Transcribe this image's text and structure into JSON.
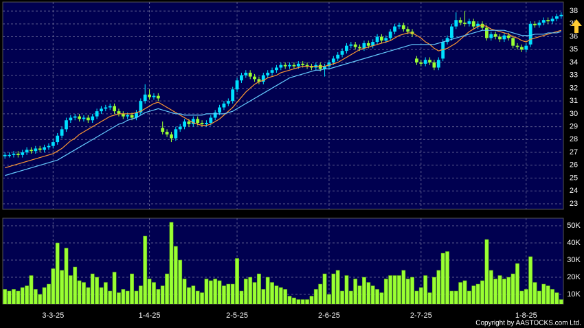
{
  "chart_data": [
    {
      "type": "candlestick",
      "up_color": "#00e0ff",
      "down_color": "#99ff33",
      "xlim": [
        -0.5,
        127.5
      ],
      "ylim": [
        22.57,
        38.7
      ],
      "yticks": [
        23,
        24,
        25,
        26,
        27,
        28,
        29,
        30,
        31,
        32,
        33,
        34,
        35,
        36,
        37,
        38
      ],
      "grid": true,
      "open": [
        26.7,
        26.8,
        26.8,
        26.9,
        26.8,
        27.0,
        27.2,
        27.1,
        27.3,
        27.2,
        27.4,
        27.5,
        27.8,
        28.3,
        28.8,
        29.5,
        29.7,
        29.8,
        29.6,
        29.7,
        29.5,
        29.8,
        30.2,
        30.4,
        30.5,
        30.6,
        30.2,
        30.0,
        29.8,
        29.9,
        29.7,
        30.1,
        31.0,
        31.5,
        31.3,
        31.4,
        28.9,
        28.6,
        28.4,
        28.1,
        28.8,
        29.0,
        29.4,
        29.2,
        29.6,
        29.3,
        29.2,
        29.3,
        29.7,
        30.1,
        30.5,
        30.8,
        31.0,
        31.9,
        32.6,
        33.0,
        33.2,
        32.9,
        32.7,
        32.5,
        33.0,
        33.2,
        33.4,
        33.6,
        33.8,
        33.7,
        33.8,
        33.7,
        33.9,
        33.8,
        33.7,
        33.6,
        33.8,
        33.5,
        33.7,
        34.0,
        34.3,
        34.6,
        34.9,
        35.3,
        35.4,
        35.2,
        35.1,
        35.5,
        35.3,
        35.6,
        36.0,
        35.7,
        35.9,
        36.4,
        36.8,
        36.9,
        36.6,
        36.4,
        34.3,
        34.0,
        33.9,
        34.2,
        34.0,
        33.6,
        34.3,
        35.6,
        35.9,
        36.8,
        37.3,
        37.1,
        37.0,
        37.2,
        36.8,
        37.0,
        36.7,
        35.9,
        36.2,
        36.0,
        35.8,
        36.1,
        35.9,
        35.3,
        35.2,
        35.0,
        35.4,
        37.0,
        36.9,
        37.1,
        37.3,
        37.2,
        37.4,
        37.6
      ],
      "high": [
        27.0,
        27.0,
        27.1,
        27.1,
        27.2,
        27.4,
        27.4,
        27.5,
        27.5,
        27.6,
        27.7,
        28.0,
        28.5,
        29.0,
        29.7,
        29.9,
        30.0,
        30.0,
        29.9,
        29.9,
        30.0,
        30.4,
        30.6,
        30.7,
        30.8,
        30.8,
        30.4,
        30.2,
        30.1,
        30.1,
        30.3,
        31.2,
        32.3,
        31.9,
        31.6,
        31.6,
        29.4,
        28.8,
        28.6,
        29.0,
        29.2,
        29.6,
        29.6,
        29.8,
        29.8,
        29.5,
        29.5,
        29.9,
        30.3,
        30.7,
        31.0,
        31.2,
        32.1,
        32.8,
        33.2,
        33.4,
        33.4,
        33.1,
        32.9,
        33.2,
        33.4,
        33.6,
        33.8,
        34.0,
        34.0,
        34.0,
        34.0,
        34.1,
        34.1,
        34.0,
        33.9,
        34.0,
        34.0,
        33.9,
        34.2,
        34.5,
        34.8,
        35.1,
        35.5,
        35.6,
        35.6,
        35.4,
        35.7,
        35.7,
        35.8,
        36.2,
        36.2,
        36.1,
        36.6,
        37.0,
        37.1,
        37.1,
        36.8,
        36.6,
        34.5,
        34.2,
        34.4,
        34.4,
        34.2,
        34.4,
        35.8,
        36.1,
        37.0,
        37.9,
        37.5,
        38.0,
        37.4,
        37.4,
        37.2,
        37.2,
        36.9,
        36.4,
        36.4,
        36.2,
        36.3,
        36.3,
        36.1,
        35.5,
        35.4,
        35.5,
        37.2,
        37.2,
        37.3,
        37.5,
        37.5,
        37.6,
        37.8,
        37.9
      ],
      "low": [
        26.5,
        26.6,
        26.6,
        26.6,
        26.6,
        26.8,
        26.9,
        26.9,
        27.0,
        27.0,
        27.2,
        27.3,
        27.6,
        28.1,
        28.6,
        29.3,
        29.5,
        29.4,
        29.4,
        29.3,
        29.3,
        29.6,
        30.0,
        30.2,
        30.3,
        30.0,
        29.8,
        29.6,
        29.6,
        29.5,
        29.5,
        29.9,
        30.8,
        31.1,
        31.1,
        31.0,
        28.4,
        28.2,
        27.8,
        27.9,
        28.6,
        28.8,
        29.0,
        29.0,
        29.1,
        29.0,
        29.0,
        29.1,
        29.5,
        29.9,
        30.3,
        30.6,
        30.8,
        31.7,
        32.4,
        32.8,
        32.7,
        32.5,
        32.3,
        32.3,
        32.8,
        33.0,
        33.2,
        33.4,
        33.5,
        33.5,
        33.5,
        33.5,
        33.6,
        33.5,
        33.4,
        33.4,
        33.3,
        32.9,
        33.5,
        33.8,
        34.1,
        34.4,
        34.7,
        35.1,
        35.0,
        34.9,
        34.9,
        35.1,
        35.1,
        35.4,
        35.5,
        35.5,
        35.7,
        36.2,
        36.6,
        36.4,
        36.2,
        36.0,
        33.8,
        33.7,
        33.7,
        33.8,
        33.4,
        33.4,
        34.1,
        35.4,
        35.7,
        36.6,
        36.9,
        36.8,
        36.8,
        36.6,
        36.6,
        36.5,
        35.7,
        35.7,
        35.8,
        35.6,
        35.6,
        35.7,
        35.1,
        35.0,
        34.8,
        34.8,
        35.2,
        36.7,
        36.7,
        36.9,
        37.0,
        37.0,
        37.2,
        37.4
      ],
      "close": [
        26.8,
        26.8,
        26.9,
        26.8,
        27.0,
        27.2,
        27.1,
        27.3,
        27.2,
        27.4,
        27.5,
        27.8,
        28.3,
        28.8,
        29.5,
        29.7,
        29.8,
        29.6,
        29.7,
        29.5,
        29.8,
        30.2,
        30.4,
        30.5,
        30.6,
        30.2,
        30.0,
        29.8,
        29.9,
        29.7,
        30.1,
        31.0,
        31.5,
        31.3,
        31.4,
        31.2,
        28.6,
        28.4,
        28.1,
        28.8,
        29.0,
        29.4,
        29.2,
        29.6,
        29.3,
        29.2,
        29.3,
        29.7,
        30.1,
        30.5,
        30.8,
        31.0,
        31.9,
        32.6,
        33.0,
        33.2,
        32.9,
        32.7,
        32.5,
        33.0,
        33.2,
        33.4,
        33.6,
        33.8,
        33.7,
        33.8,
        33.7,
        33.9,
        33.8,
        33.7,
        33.6,
        33.8,
        33.5,
        33.7,
        34.0,
        34.3,
        34.6,
        34.9,
        35.3,
        35.4,
        35.2,
        35.1,
        35.5,
        35.3,
        35.6,
        36.0,
        35.7,
        35.9,
        36.4,
        36.8,
        36.9,
        36.6,
        36.4,
        36.2,
        34.0,
        33.9,
        34.2,
        34.0,
        33.6,
        34.2,
        35.6,
        35.9,
        36.8,
        37.3,
        37.1,
        37.0,
        37.2,
        36.8,
        37.0,
        36.7,
        35.9,
        36.2,
        36.0,
        35.8,
        36.1,
        35.9,
        35.3,
        35.2,
        35.0,
        35.3,
        37.0,
        36.9,
        37.1,
        37.3,
        37.2,
        37.4,
        37.6,
        37.7
      ],
      "lines": [
        {
          "color": "#ff9933",
          "values": [
            25.8,
            25.9,
            26.0,
            26.1,
            26.2,
            26.3,
            26.4,
            26.5,
            26.6,
            26.7,
            26.8,
            26.9,
            27.1,
            27.3,
            27.6,
            27.9,
            28.1,
            28.4,
            28.6,
            28.8,
            29.0,
            29.2,
            29.4,
            29.6,
            29.8,
            29.9,
            30.0,
            30.0,
            30.0,
            30.0,
            30.1,
            30.2,
            30.4,
            30.6,
            30.8,
            30.9,
            30.7,
            30.5,
            30.3,
            30.1,
            29.9,
            29.7,
            29.5,
            29.3,
            29.2,
            29.1,
            29.1,
            29.2,
            29.4,
            29.6,
            29.9,
            30.2,
            30.5,
            30.9,
            31.3,
            31.7,
            32.0,
            32.3,
            32.5,
            32.6,
            32.8,
            32.9,
            33.0,
            33.2,
            33.3,
            33.4,
            33.5,
            33.6,
            33.7,
            33.7,
            33.7,
            33.7,
            33.7,
            33.7,
            33.8,
            33.9,
            34.0,
            34.2,
            34.4,
            34.6,
            34.8,
            35.0,
            35.1,
            35.2,
            35.3,
            35.4,
            35.5,
            35.6,
            35.7,
            35.9,
            36.1,
            36.2,
            36.3,
            36.3,
            36.1,
            35.9,
            35.6,
            35.4,
            35.1,
            34.9,
            35.0,
            35.1,
            35.3,
            35.5,
            35.8,
            36.1,
            36.4,
            36.6,
            36.8,
            36.9,
            36.8,
            36.6,
            36.5,
            36.4,
            36.3,
            36.2,
            36.0,
            35.9,
            35.7,
            35.6,
            35.8,
            35.9,
            36.0,
            36.1,
            36.2,
            36.3,
            36.4,
            36.5
          ]
        },
        {
          "color": "#66ccff",
          "values": [
            25.2,
            25.3,
            25.4,
            25.5,
            25.6,
            25.7,
            25.8,
            25.9,
            26.0,
            26.1,
            26.2,
            26.3,
            26.4,
            26.6,
            26.8,
            27.0,
            27.2,
            27.4,
            27.6,
            27.8,
            28.0,
            28.2,
            28.4,
            28.6,
            28.8,
            29.0,
            29.2,
            29.3,
            29.5,
            29.6,
            29.7,
            29.9,
            30.1,
            30.2,
            30.3,
            30.4,
            30.3,
            30.2,
            30.1,
            30.0,
            30.0,
            29.9,
            29.9,
            29.9,
            29.9,
            29.9,
            30.0,
            30.0,
            30.0,
            30.0,
            30.0,
            30.1,
            30.2,
            30.4,
            30.6,
            30.8,
            31.0,
            31.2,
            31.4,
            31.6,
            31.8,
            32.0,
            32.2,
            32.4,
            32.6,
            32.8,
            32.9,
            33.0,
            33.1,
            33.2,
            33.3,
            33.4,
            33.4,
            33.5,
            33.5,
            33.6,
            33.7,
            33.8,
            33.9,
            34.0,
            34.1,
            34.2,
            34.3,
            34.4,
            34.5,
            34.6,
            34.7,
            34.8,
            34.9,
            35.0,
            35.1,
            35.2,
            35.3,
            35.4,
            35.4,
            35.4,
            35.4,
            35.4,
            35.4,
            35.5,
            35.6,
            35.7,
            35.8,
            35.9,
            36.0,
            36.1,
            36.2,
            36.3,
            36.4,
            36.5,
            36.5,
            36.5,
            36.5,
            36.5,
            36.5,
            36.4,
            36.3,
            36.2,
            36.1,
            36.1,
            36.1,
            36.2,
            36.2,
            36.2,
            36.3,
            36.3,
            36.3,
            36.4
          ]
        }
      ]
    },
    {
      "type": "bar",
      "color": "#99ff33",
      "xlim": [
        -0.5,
        127.5
      ],
      "ylim": [
        4400,
        54400
      ],
      "yticks": [
        {
          "value": 10000,
          "label": "10K"
        },
        {
          "value": 20000,
          "label": "20K"
        },
        {
          "value": 30000,
          "label": "30K"
        },
        {
          "value": 40000,
          "label": "40K"
        },
        {
          "value": 50000,
          "label": "50K"
        }
      ],
      "xticks": [
        {
          "value": 11,
          "label": "3-3-25"
        },
        {
          "value": 33,
          "label": "1-4-25"
        },
        {
          "value": 53,
          "label": "2-5-25"
        },
        {
          "value": 74,
          "label": "2-6-25"
        },
        {
          "value": 95,
          "label": "2-7-25"
        },
        {
          "value": 119,
          "label": "1-8-25"
        }
      ],
      "grid": true,
      "values": [
        13000,
        12000,
        13000,
        12000,
        14000,
        15000,
        21000,
        13000,
        10000,
        14000,
        16000,
        25000,
        40000,
        24000,
        37000,
        21000,
        26000,
        18000,
        17000,
        14000,
        22000,
        20000,
        14000,
        17000,
        12000,
        23000,
        11000,
        13000,
        12000,
        22000,
        12000,
        15000,
        44000,
        19000,
        17000,
        13000,
        15000,
        22000,
        52000,
        38000,
        30000,
        19000,
        14000,
        15000,
        12000,
        11000,
        19000,
        18000,
        19000,
        18000,
        15000,
        16000,
        16000,
        31000,
        12000,
        19000,
        20000,
        17000,
        22000,
        13000,
        20000,
        17000,
        15000,
        14000,
        13000,
        9000,
        8000,
        7000,
        7000,
        7000,
        9000,
        13000,
        16000,
        22000,
        10000,
        22000,
        24000,
        12000,
        21000,
        12000,
        19000,
        15000,
        20000,
        17000,
        15000,
        13000,
        11000,
        19000,
        21000,
        21000,
        21000,
        24000,
        19000,
        20000,
        12000,
        14000,
        21000,
        11000,
        20000,
        24000,
        34000,
        35000,
        12000,
        12000,
        17000,
        18000,
        12000,
        15000,
        16000,
        18000,
        42000,
        24000,
        19000,
        21000,
        19000,
        20000,
        22000,
        28000,
        12000,
        13000,
        32000,
        17000,
        12000,
        16000,
        15000,
        13000,
        11000,
        7000
      ]
    }
  ],
  "copyright": "Copyright by AASTOCKS.com Ltd."
}
